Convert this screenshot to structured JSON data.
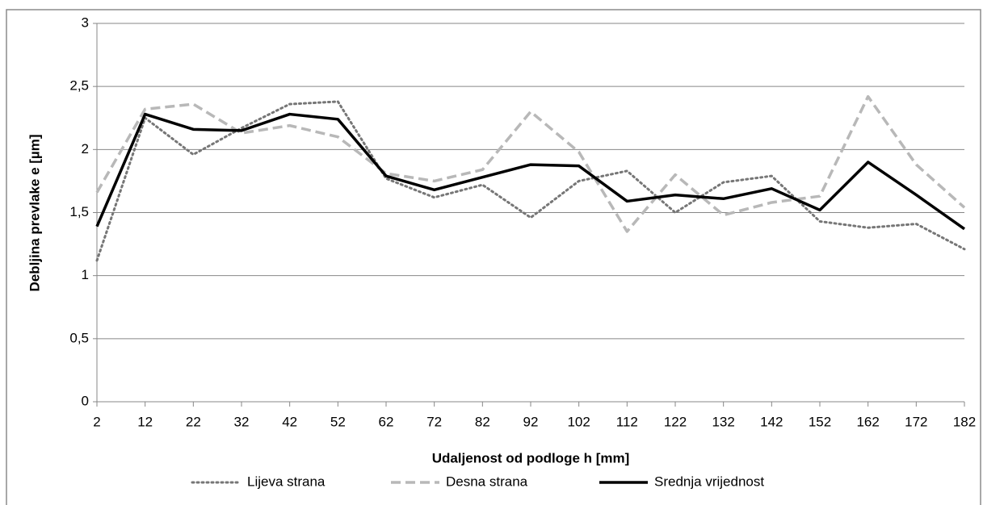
{
  "chart_data": {
    "type": "line",
    "x_label": "Udaljenost od podloge h [mm]",
    "y_label": "Debljina prevlake e [µm]",
    "x": [
      2,
      12,
      22,
      32,
      42,
      52,
      62,
      72,
      82,
      92,
      102,
      112,
      122,
      132,
      142,
      152,
      162,
      172,
      182
    ],
    "xlim": [
      2,
      182
    ],
    "xticks": [
      2,
      12,
      22,
      32,
      42,
      52,
      62,
      72,
      82,
      92,
      102,
      112,
      122,
      132,
      142,
      152,
      162,
      172,
      182
    ],
    "ylim": [
      0,
      3
    ],
    "yticks": [
      0,
      {
        "value": 0.5,
        "label": "0,5"
      },
      1,
      {
        "value": 1.5,
        "label": "1,5"
      },
      2,
      {
        "value": 2.5,
        "label": "2,5"
      },
      3
    ],
    "grid": true,
    "legend": "bottom",
    "series": [
      {
        "name": "Lijeva strana",
        "color": "#767676",
        "dash": "dotted",
        "values": [
          1.12,
          2.25,
          1.96,
          2.17,
          2.36,
          2.38,
          1.77,
          1.62,
          1.72,
          1.46,
          1.75,
          1.83,
          1.5,
          1.74,
          1.79,
          1.43,
          1.38,
          1.41,
          1.21
        ]
      },
      {
        "name": "Desna strana",
        "color": "#b8b8b8",
        "dash": "dashed",
        "values": [
          1.66,
          2.32,
          2.36,
          2.13,
          2.19,
          2.1,
          1.81,
          1.75,
          1.84,
          2.3,
          1.98,
          1.35,
          1.8,
          1.48,
          1.58,
          1.63,
          2.42,
          1.88,
          1.54
        ]
      },
      {
        "name": "Srednja vrijednost",
        "color": "#000000",
        "dash": "solid",
        "values": [
          1.39,
          2.28,
          2.16,
          2.15,
          2.28,
          2.24,
          1.79,
          1.68,
          1.78,
          1.88,
          1.87,
          1.59,
          1.64,
          1.61,
          1.69,
          1.52,
          1.9,
          1.64,
          1.37
        ]
      }
    ]
  }
}
